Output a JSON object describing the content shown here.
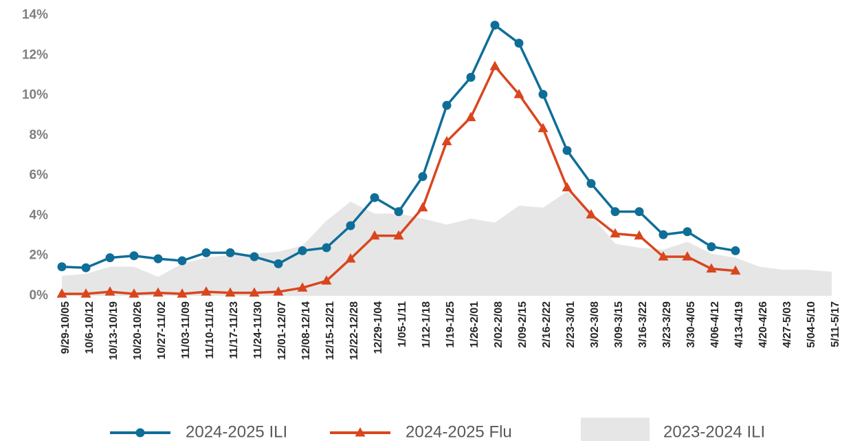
{
  "chart_data": {
    "type": "line",
    "categories": [
      "9/29-10/05",
      "10/6-10/12",
      "10/13-10/19",
      "10/20-10/26",
      "10/27-11/02",
      "11/03-11/09",
      "11/10-11/16",
      "11/17-11/23",
      "11/24-11/30",
      "12/01-12/07",
      "12/08-12/14",
      "12/15-12/21",
      "12/22-12/28",
      "12/29-1/04",
      "1/05-1/11",
      "1/12-1/18",
      "1/19-1/25",
      "1/26-2/01",
      "2/02-2/08",
      "2/09-2/15",
      "2/16-2/22",
      "2/23-3/01",
      "3/02-3/08",
      "3/09-3/15",
      "3/16-3/22",
      "3/23-3/29",
      "3/30-4/05",
      "4/06-4/12",
      "4/13-4/19",
      "4/20-4/26",
      "4/27-5/03",
      "5/04-5/10",
      "5/11-5/17"
    ],
    "series": [
      {
        "name": "2024-2025 ILI",
        "color": "#0f6e97",
        "type": "line",
        "marker": "circle",
        "values": [
          1.45,
          1.4,
          1.9,
          2.0,
          1.85,
          1.75,
          2.15,
          2.15,
          1.95,
          1.6,
          2.25,
          2.4,
          3.5,
          4.9,
          4.2,
          5.95,
          9.5,
          10.9,
          13.5,
          12.6,
          10.05,
          7.25,
          5.6,
          4.2,
          4.2,
          3.05,
          3.2,
          2.45,
          2.25,
          null,
          null,
          null,
          null
        ]
      },
      {
        "name": "2024-2025 Flu",
        "color": "#d9461e",
        "type": "line",
        "marker": "triangle",
        "values": [
          0.1,
          0.1,
          0.2,
          0.1,
          0.15,
          0.1,
          0.2,
          0.15,
          0.15,
          0.2,
          0.4,
          0.75,
          1.85,
          3.0,
          3.0,
          4.4,
          7.7,
          8.9,
          11.45,
          10.05,
          8.35,
          5.4,
          4.05,
          3.1,
          3.0,
          1.95,
          1.95,
          1.35,
          1.25,
          null,
          null,
          null,
          null
        ]
      },
      {
        "name": "2023-2024 ILI",
        "color": "#e6e6e6",
        "type": "area",
        "values": [
          1.0,
          1.1,
          1.45,
          1.45,
          0.95,
          1.6,
          1.9,
          2.05,
          2.1,
          2.2,
          2.5,
          3.75,
          4.7,
          4.1,
          4.1,
          3.85,
          3.55,
          3.85,
          3.65,
          4.5,
          4.4,
          5.2,
          4.05,
          2.6,
          2.4,
          2.3,
          2.7,
          2.1,
          1.9,
          1.45,
          1.3,
          1.3,
          1.2
        ]
      }
    ],
    "ylim": [
      0,
      14
    ],
    "yticks": [
      {
        "value": 0,
        "label": "0%"
      },
      {
        "value": 2,
        "label": "2%"
      },
      {
        "value": 4,
        "label": "4%"
      },
      {
        "value": 6,
        "label": "6%"
      },
      {
        "value": 8,
        "label": "8%"
      },
      {
        "value": 10,
        "label": "10%"
      },
      {
        "value": 12,
        "label": "12%"
      },
      {
        "value": 14,
        "label": "14%"
      }
    ],
    "grid": false,
    "legend": "bottom"
  }
}
